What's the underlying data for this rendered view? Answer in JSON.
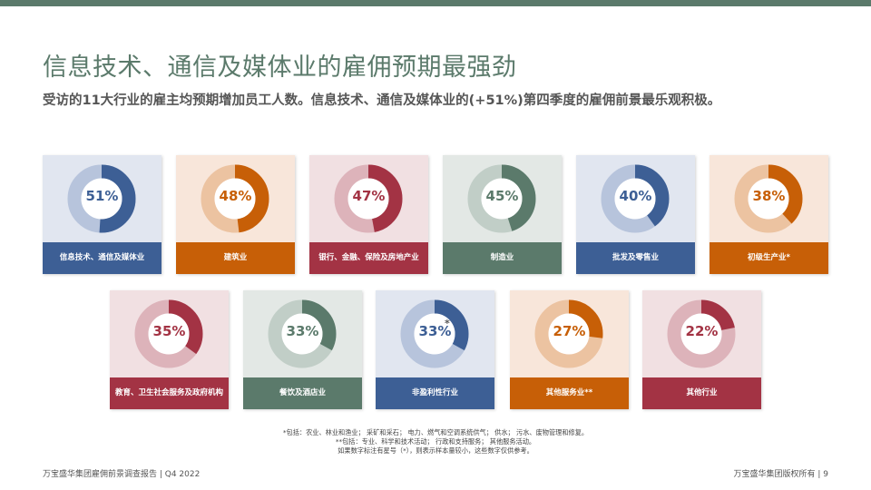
{
  "title": "信息技术、通信及媒体业的雇佣预期最强劲",
  "subtitle": "受访的11大行业的雇主均预期增加员工人数。信息技术、通信及媒体业的(+51%)第四季度的雇佣前景最乐观积极。",
  "colors": {
    "header_bar": "#5b7a6b",
    "title": "#5b7a6b",
    "blue": "#3d5f95",
    "orange": "#c75f07",
    "red": "#a33344",
    "green": "#5b7a6b"
  },
  "cards": [
    {
      "value": "51%",
      "percent": 51,
      "label": "信息技术、通信及媒体业",
      "theme": "blue"
    },
    {
      "value": "48%",
      "percent": 48,
      "label": "建筑业",
      "theme": "orange"
    },
    {
      "value": "47%",
      "percent": 47,
      "label": "银行、金融、保险及房地产业",
      "theme": "red"
    },
    {
      "value": "45%",
      "percent": 45,
      "label": "制造业",
      "theme": "green"
    },
    {
      "value": "40%",
      "percent": 40,
      "label": "批发及零售业",
      "theme": "blue"
    },
    {
      "value": "38%",
      "percent": 38,
      "label": "初级生产业*",
      "theme": "orange"
    },
    {
      "value": "35%",
      "percent": 35,
      "label": "教育、卫生社会服务及政府机构",
      "theme": "red"
    },
    {
      "value": "33%",
      "percent": 33,
      "label": "餐饮及酒店业",
      "theme": "green"
    },
    {
      "value": "33%",
      "percent": 33,
      "label": "非盈利性行业",
      "theme": "blue",
      "star": "*"
    },
    {
      "value": "27%",
      "percent": 27,
      "label": "其他服务业**",
      "theme": "orange"
    },
    {
      "value": "22%",
      "percent": 22,
      "label": "其他行业",
      "theme": "red"
    }
  ],
  "footnotes": [
    "*包括：农业、林业和渔业； 采矿和采石； 电力、燃气和空调系统供气； 供水； 污水、废物管理和修复。",
    "**包括：专业、科学和技术活动； 行政和支持服务； 其他服务活动。",
    "如果数字标注有星号（*），则表示样本量较小，这些数字仅供参考。"
  ],
  "footer": {
    "left": "万宝盛华集团雇佣前景调查报告 |  Q4 2022",
    "right": "万宝盛华集团版权所有 |  9"
  }
}
